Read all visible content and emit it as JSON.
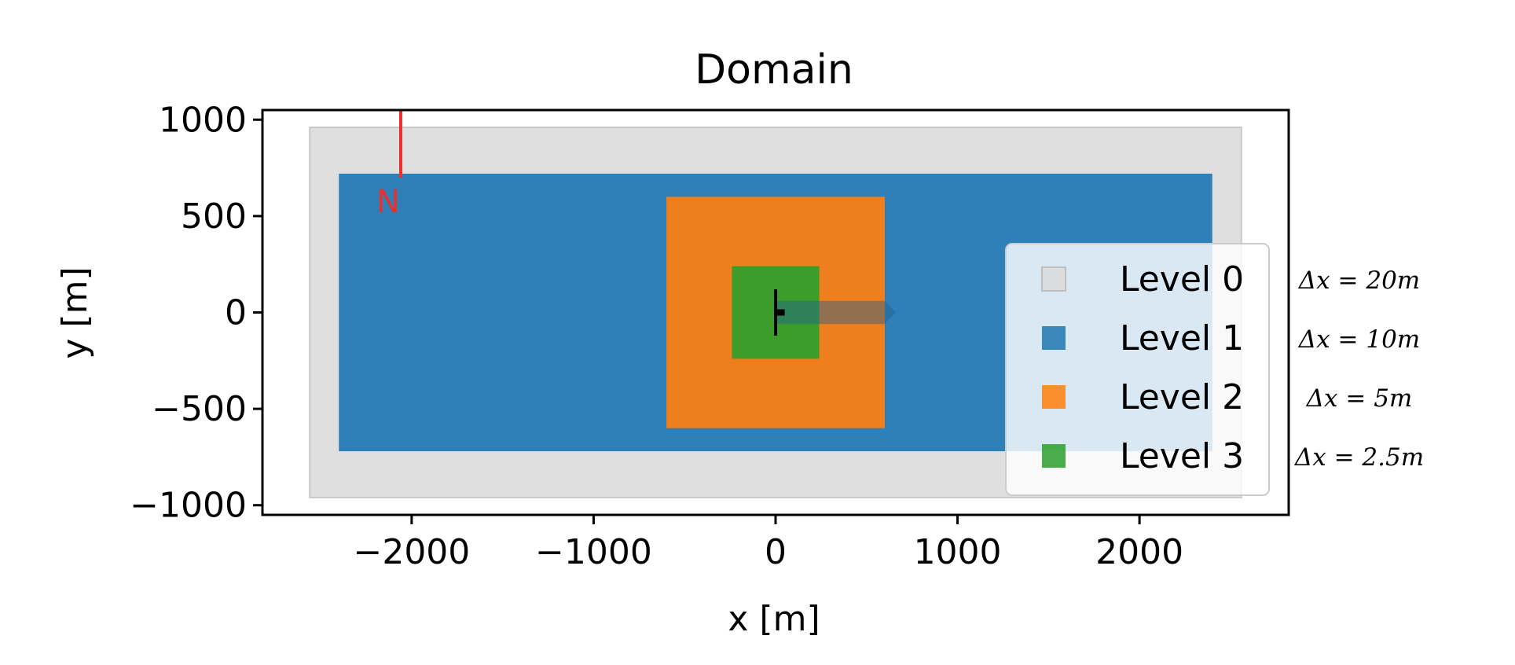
{
  "chart_data": {
    "type": "domain-refinement-map",
    "title": "Domain",
    "xlabel": "x [m]",
    "ylabel": "y [m]",
    "xlim": [
      -2820,
      2820
    ],
    "ylim": [
      -1050,
      1050
    ],
    "xticks": [
      -2000,
      -1000,
      0,
      1000,
      2000
    ],
    "xtick_labels": [
      "−2000",
      "−1000",
      "0",
      "1000",
      "2000"
    ],
    "yticks": [
      1000,
      500,
      0,
      -500,
      -1000
    ],
    "ytick_labels": [
      "1000",
      "500",
      "0",
      "−500",
      "−1000"
    ],
    "grid": false,
    "legend_position": "center-right",
    "levels": [
      {
        "name": "Level 0",
        "color": "#d9d9d9",
        "x": [
          -2560,
          2560
        ],
        "y": [
          -960,
          960
        ],
        "annotation": "Δx = 20m"
      },
      {
        "name": "Level 1",
        "color": "#1f77b4",
        "x": [
          -2400,
          2400
        ],
        "y": [
          -720,
          720
        ],
        "annotation": "Δx = 10m"
      },
      {
        "name": "Level 2",
        "color": "#ff7f0e",
        "x": [
          -600,
          600
        ],
        "y": [
          -600,
          600
        ],
        "annotation": "Δx = 5m"
      },
      {
        "name": "Level 3",
        "color": "#2ca02c",
        "x": [
          -240,
          240
        ],
        "y": [
          -240,
          240
        ],
        "annotation": "Δx = 2.5m"
      }
    ],
    "turbine": {
      "x": 0,
      "y": 0,
      "rotor_half_span": 120,
      "hub_length": 50,
      "color": "#000000"
    },
    "wake": {
      "x_start": 0,
      "x_end": 660,
      "half_width": 60,
      "color": "#1f5f8f"
    },
    "north_arrow": {
      "label": "N",
      "x": -2060,
      "y_start": 1050,
      "y_end": 700,
      "color": "#e8312d"
    }
  }
}
